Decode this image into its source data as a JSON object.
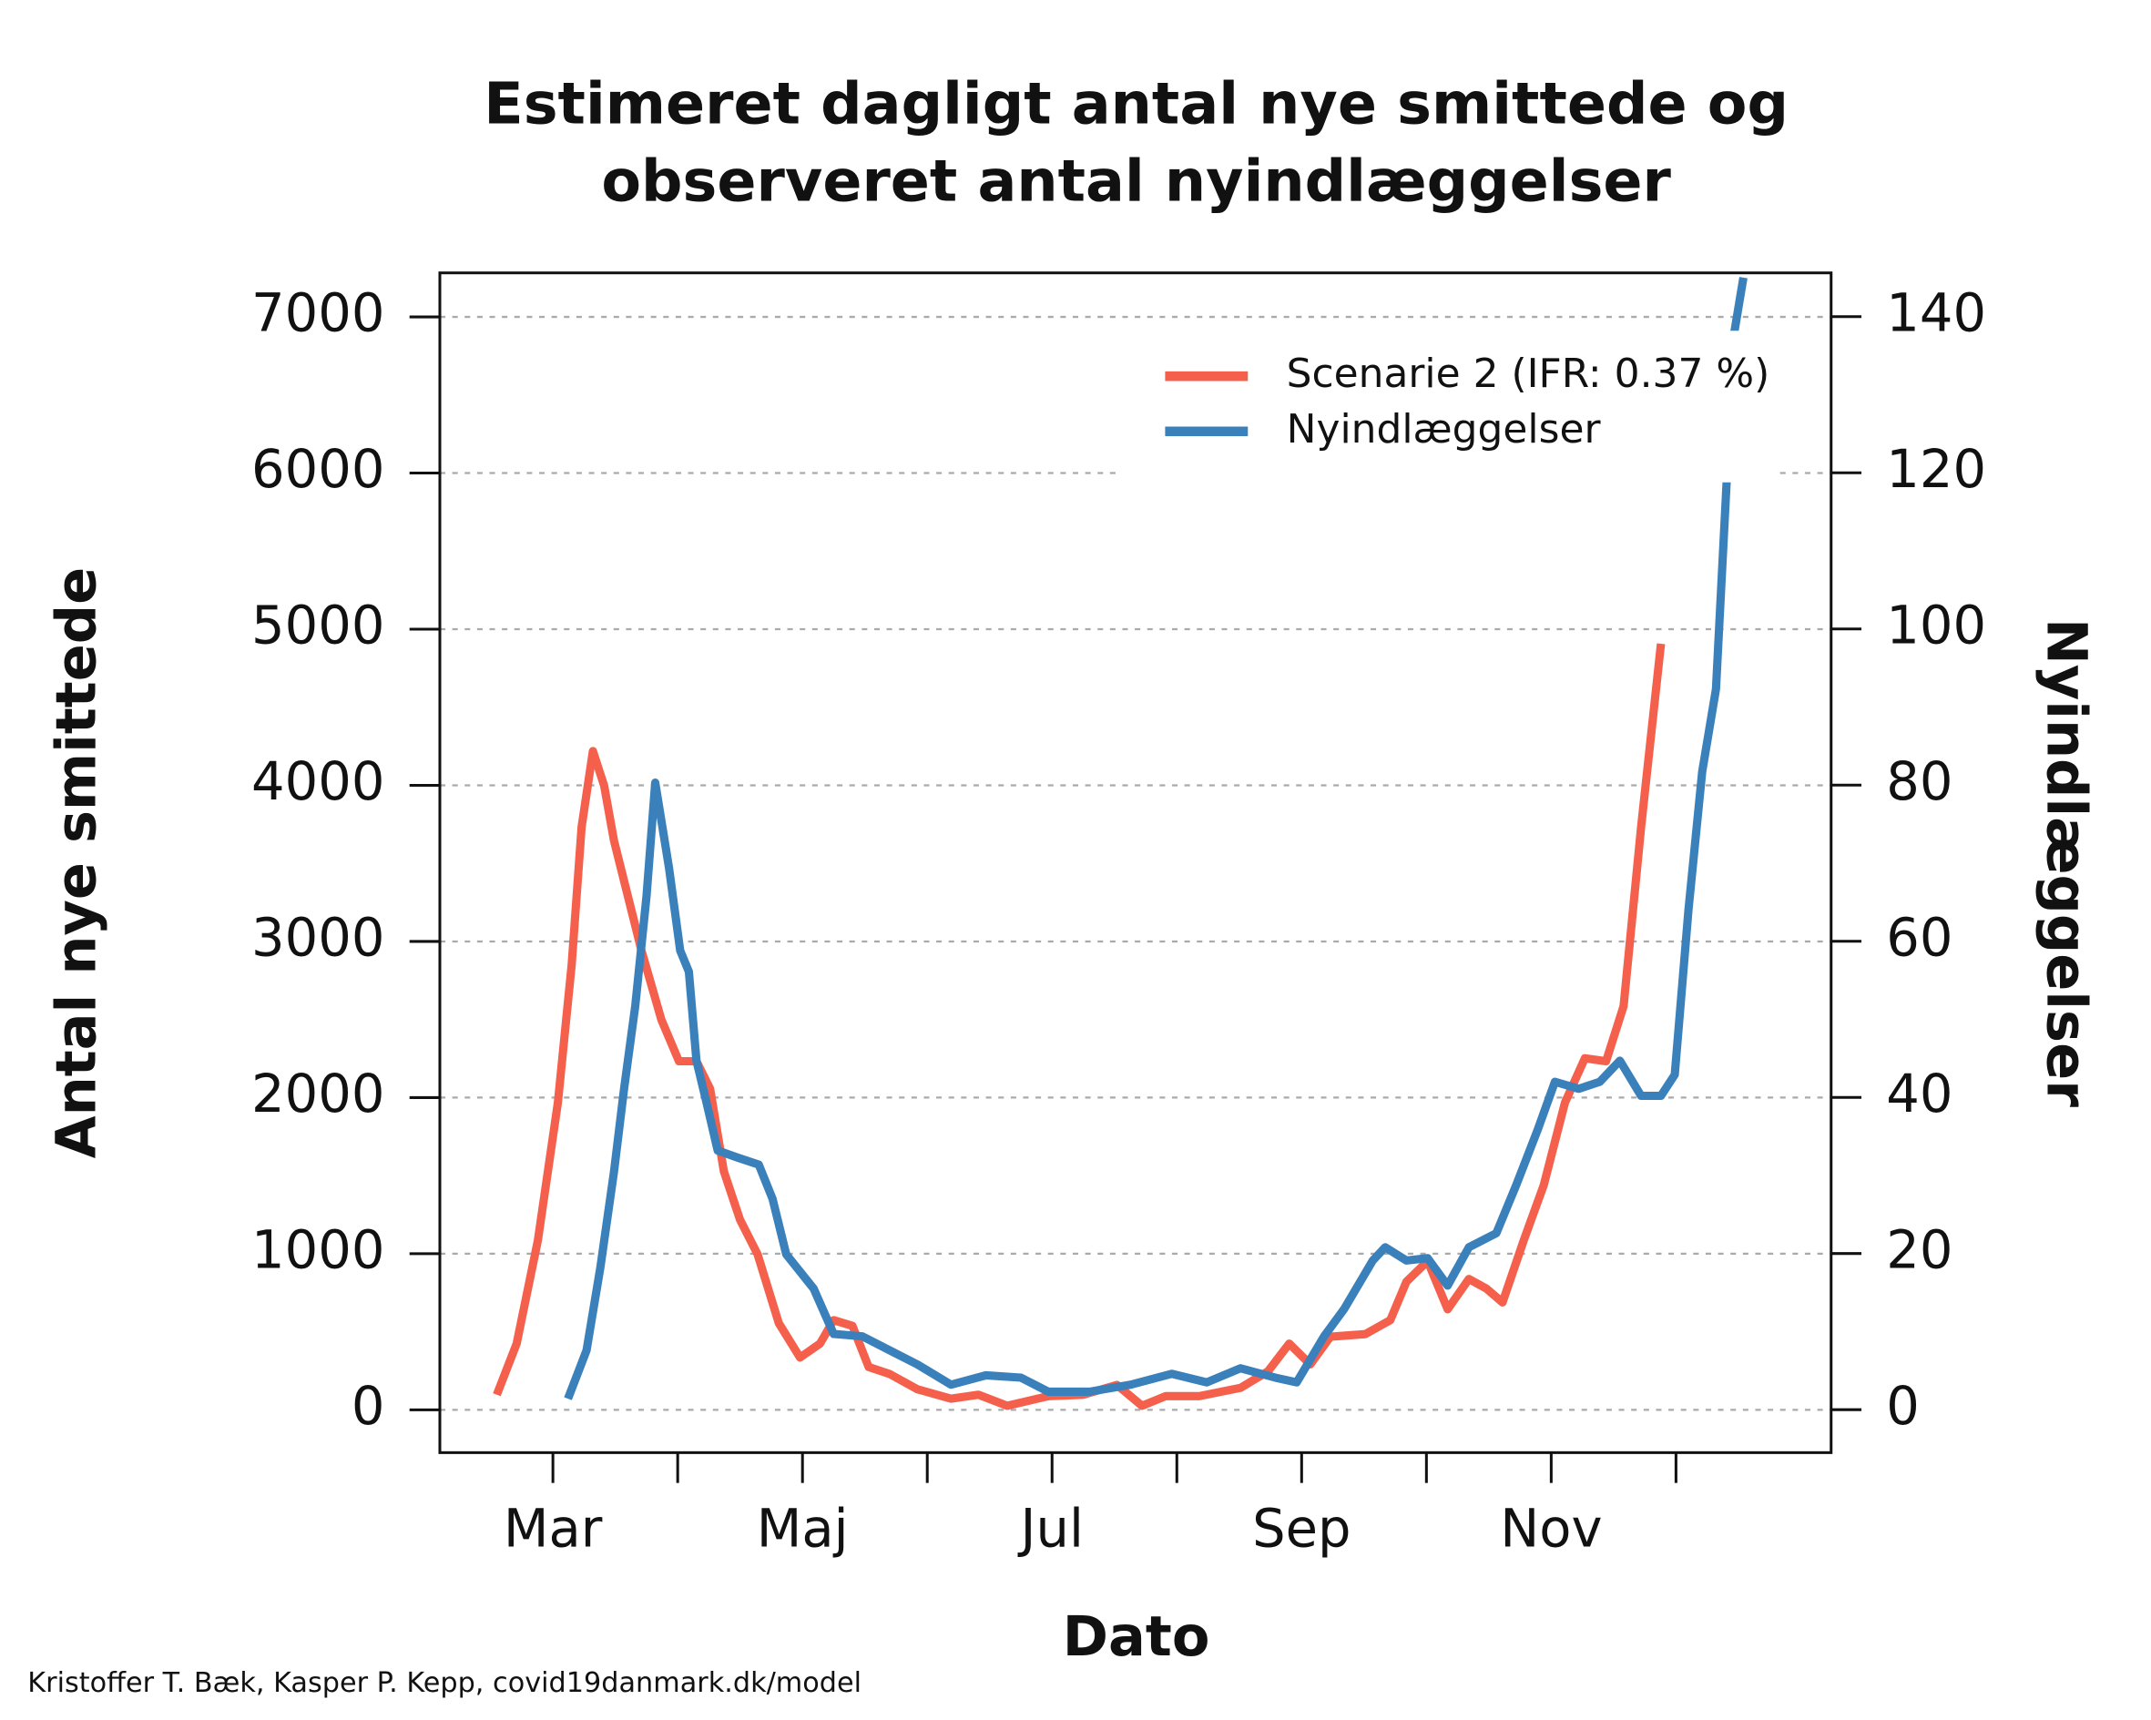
{
  "chart_data": {
    "type": "line",
    "title": [
      "Estimeret dagligt antal nye smittede og",
      "observeret antal nyindlæggelser"
    ],
    "xlabel": "Dato",
    "ylabel": "Antal nye smittede",
    "y2label": "Nyindlæggelser",
    "credit": "Kristoffer T. Bæk, Kasper P. Kepp, covid19danmark.dk/model",
    "xlim": [
      2.094,
      13.243
    ],
    "xticks": [
      {
        "value": 3,
        "label": "Mar"
      },
      {
        "value": 4,
        "label": null
      },
      {
        "value": 5,
        "label": "Maj"
      },
      {
        "value": 6,
        "label": null
      },
      {
        "value": 7,
        "label": "Jul"
      },
      {
        "value": 8,
        "label": null
      },
      {
        "value": 9,
        "label": "Sep"
      },
      {
        "value": 10,
        "label": null
      },
      {
        "value": 11,
        "label": "Nov"
      },
      {
        "value": 12,
        "label": null
      }
    ],
    "ylim": [
      -274,
      7282
    ],
    "yticks": [
      0,
      1000,
      2000,
      3000,
      4000,
      5000,
      6000,
      7000
    ],
    "y2lim": [
      -5.5,
      145.6
    ],
    "y2ticks": [
      0,
      20,
      40,
      60,
      80,
      100,
      120,
      140
    ],
    "grid": true,
    "legend": "upper right",
    "series": [
      {
        "name": "Scenarie 2 (IFR: 0.37 %)",
        "color": "#f4604c",
        "x": [
          2.55,
          2.71,
          2.88,
          3.04,
          3.15,
          3.23,
          3.32,
          3.41,
          3.49,
          3.6,
          3.71,
          3.87,
          4.01,
          4.15,
          4.26,
          4.37,
          4.5,
          4.64,
          4.81,
          4.98,
          5.14,
          5.25,
          5.4,
          5.53,
          5.7,
          5.92,
          6.19,
          6.41,
          6.64,
          6.97,
          7.25,
          7.52,
          7.72,
          7.91,
          8.18,
          8.51,
          8.73,
          8.9,
          9.07,
          9.23,
          9.51,
          9.71,
          9.84,
          10.01,
          10.17,
          10.34,
          10.48,
          10.61,
          10.78,
          10.94,
          11.11,
          11.27,
          11.44,
          11.58,
          11.72,
          11.88
        ],
        "values": [
          97,
          424,
          1086,
          1968,
          2851,
          3733,
          4219,
          3999,
          3645,
          3292,
          2939,
          2498,
          2233,
          2233,
          2056,
          1527,
          1218,
          997,
          556,
          335,
          424,
          574,
          538,
          274,
          229,
          132,
          71,
          97,
          26,
          88,
          97,
          159,
          26,
          88,
          88,
          141,
          247,
          424,
          291,
          468,
          485,
          574,
          821,
          953,
          644,
          838,
          777,
          688,
          1086,
          1439,
          1968,
          2251,
          2233,
          2586,
          3733,
          4907
        ]
      },
      {
        "name": "Nyindlæggelser",
        "color": "#3a80bb",
        "axis": "y2",
        "x": [
          3.12,
          3.27,
          3.38,
          3.49,
          3.57,
          3.66,
          3.75,
          3.82,
          3.93,
          4.02,
          4.09,
          4.15,
          4.23,
          4.32,
          4.48,
          4.65,
          4.76,
          4.87,
          5.09,
          5.25,
          5.48,
          5.7,
          5.92,
          6.19,
          6.47,
          6.75,
          6.97,
          7.3,
          7.63,
          7.96,
          8.24,
          8.51,
          8.79,
          8.96,
          9.18,
          9.34,
          9.57,
          9.67,
          9.84,
          10.01,
          10.17,
          10.34,
          10.56,
          10.72,
          10.89,
          11.03,
          11.22,
          11.39,
          11.55,
          11.72,
          11.88,
          11.99,
          12.1,
          12.21,
          12.32,
          12.4,
          12.47,
          12.54
        ],
        "values": [
          1.4,
          7.6,
          18.2,
          30.5,
          41.1,
          51.7,
          65.8,
          80.3,
          69.4,
          58.8,
          56.1,
          44.7,
          39.4,
          33.2,
          32.3,
          31.4,
          27,
          19.9,
          15.5,
          9.7,
          9.4,
          7.6,
          5.8,
          3.2,
          4.4,
          4.1,
          2.3,
          2.3,
          3.2,
          4.6,
          3.5,
          5.3,
          4.1,
          3.5,
          9.4,
          12.9,
          19.1,
          20.8,
          19.1,
          19.4,
          15.9,
          20.8,
          22.6,
          28.8,
          35.8,
          42,
          41.1,
          42,
          44.7,
          40.2,
          40.2,
          42.9,
          64.1,
          81.7,
          92.3,
          117,
          138.2,
          145
        ]
      }
    ]
  }
}
